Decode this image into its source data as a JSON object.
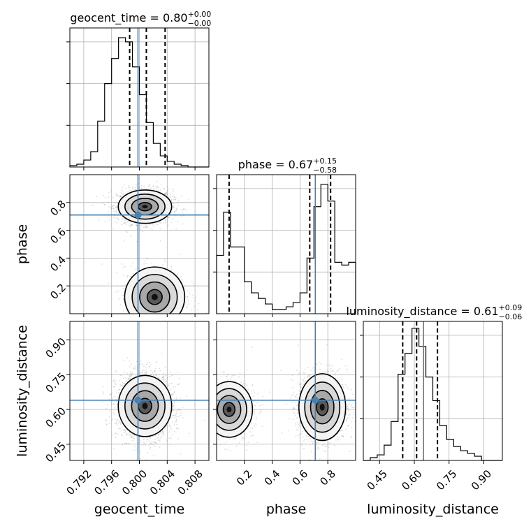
{
  "chart_data": {
    "type": "corner",
    "colors": {
      "truth": "#4682b4",
      "hist": "#000000",
      "quantile": "#000000",
      "samples": "#808080"
    },
    "parameters": [
      {
        "name": "geocent_time",
        "title": {
          "label": "geocent_time = 0.80",
          "plus": "+0.00",
          "minus": "−0.00"
        },
        "range": [
          0.79,
          0.81
        ],
        "ticks": [
          0.792,
          0.796,
          0.8,
          0.804,
          0.808
        ],
        "tick_labels": [
          "0.792",
          "0.796",
          "0.800",
          "0.804",
          "0.808"
        ],
        "quantiles": [
          0.7986,
          0.801,
          0.8037
        ],
        "truth": 0.7998,
        "histogram": [
          0.01,
          0.02,
          0.05,
          0.11,
          0.33,
          0.6,
          0.78,
          0.93,
          0.9,
          0.72,
          0.52,
          0.32,
          0.17,
          0.08,
          0.04,
          0.02,
          0.01,
          0.0,
          0.0,
          0.0
        ]
      },
      {
        "name": "phase",
        "title": {
          "label": "phase = 0.67",
          "plus": "+0.15",
          "minus": "−0.58"
        },
        "range": [
          0.0,
          1.0
        ],
        "ticks": [
          0.2,
          0.4,
          0.6,
          0.8
        ],
        "tick_labels": [
          "0.2",
          "0.4",
          "0.6",
          "0.8"
        ],
        "quantiles": [
          0.09,
          0.67,
          0.82
        ],
        "truth": 0.71,
        "histogram": [
          0.42,
          0.73,
          0.48,
          0.48,
          0.23,
          0.15,
          0.11,
          0.07,
          0.03,
          0.03,
          0.05,
          0.08,
          0.15,
          0.4,
          0.77,
          0.93,
          0.81,
          0.37,
          0.35,
          0.37
        ]
      },
      {
        "name": "luminosity_distance",
        "title": {
          "label": "luminosity_distance = 0.61",
          "plus": "+0.09",
          "minus": "−0.06"
        },
        "range": [
          0.38,
          0.98
        ],
        "ticks": [
          0.45,
          0.6,
          0.75,
          0.9
        ],
        "tick_labels": [
          "0.45",
          "0.60",
          "0.75",
          "0.90"
        ],
        "quantiles": [
          0.55,
          0.61,
          0.7
        ],
        "truth": 0.64,
        "histogram": [
          0.0,
          0.02,
          0.04,
          0.11,
          0.28,
          0.62,
          0.77,
          0.95,
          0.82,
          0.6,
          0.43,
          0.25,
          0.15,
          0.1,
          0.07,
          0.05,
          0.03,
          0.0,
          0.0,
          0.0
        ]
      }
    ],
    "pairs": [
      {
        "x": "geocent_time",
        "y": "phase",
        "modes": [
          {
            "cx": 0.8008,
            "cy": 0.77,
            "sx": 0.0016,
            "sy": 0.05,
            "weight": 0.65
          },
          {
            "cx": 0.8022,
            "cy": 0.12,
            "sx": 0.0018,
            "sy": 0.09,
            "weight": 0.35
          }
        ]
      },
      {
        "x": "geocent_time",
        "y": "luminosity_distance",
        "modes": [
          {
            "cx": 0.8008,
            "cy": 0.615,
            "sx": 0.0016,
            "sy": 0.055,
            "weight": 1.0
          }
        ]
      },
      {
        "x": "phase",
        "y": "luminosity_distance",
        "modes": [
          {
            "cx": 0.09,
            "cy": 0.6,
            "sx": 0.07,
            "sy": 0.05,
            "weight": 0.35
          },
          {
            "cx": 0.76,
            "cy": 0.61,
            "sx": 0.07,
            "sy": 0.06,
            "weight": 0.65
          }
        ]
      }
    ]
  }
}
